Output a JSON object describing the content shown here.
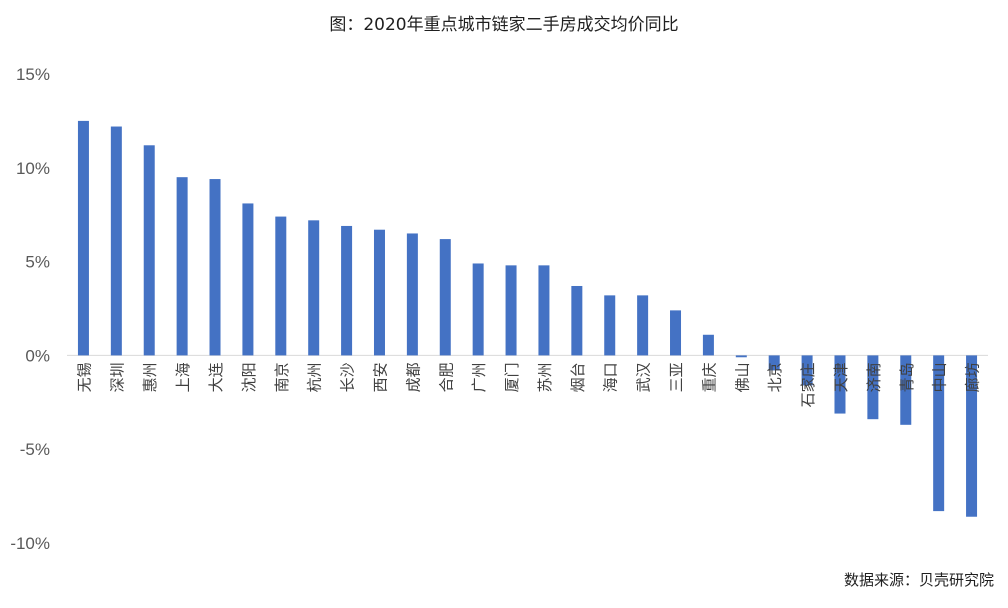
{
  "chart_data": {
    "type": "bar",
    "title": "图：2020年重点城市链家二手房成交均价同比",
    "source": "数据来源：贝壳研究院",
    "xlabel": "",
    "ylabel": "",
    "ylim": [
      -10,
      15
    ],
    "yticks": [
      "15%",
      "10%",
      "5%",
      "0%",
      "-5%",
      "-10%"
    ],
    "ytick_values": [
      15,
      10,
      5,
      0,
      -5,
      -10
    ],
    "grid": false,
    "legend": "none",
    "bar_color": "#4472C4",
    "categories": [
      "无锡",
      "深圳",
      "惠州",
      "上海",
      "大连",
      "沈阳",
      "南京",
      "杭州",
      "长沙",
      "西安",
      "成都",
      "合肥",
      "广州",
      "厦门",
      "苏州",
      "烟台",
      "海口",
      "武汉",
      "三亚",
      "重庆",
      "佛山",
      "北京",
      "石家庄",
      "天津",
      "济南",
      "青岛",
      "中山",
      "廊坊"
    ],
    "values": [
      12.5,
      12.2,
      11.2,
      9.5,
      9.4,
      8.1,
      7.4,
      7.2,
      6.9,
      6.7,
      6.5,
      6.2,
      4.9,
      4.8,
      4.8,
      3.7,
      3.2,
      3.2,
      2.4,
      1.1,
      -0.1,
      -0.8,
      -1.6,
      -3.1,
      -3.4,
      -3.7,
      -8.3,
      -8.6
    ]
  }
}
